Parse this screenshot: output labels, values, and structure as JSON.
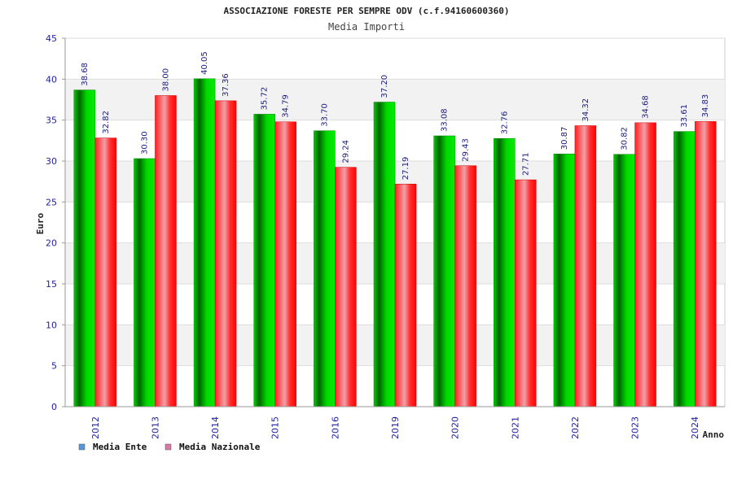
{
  "chart_data": {
    "type": "bar",
    "title": "ASSOCIAZIONE FORESTE PER SEMPRE ODV (c.f.94160600360)",
    "subtitle": "Media Importi",
    "xlabel": "Anno",
    "ylabel": "Euro",
    "ylim": [
      0,
      45
    ],
    "yticks": [
      0,
      5,
      10,
      15,
      20,
      25,
      30,
      35,
      40,
      45
    ],
    "grid": "horizontal",
    "legend_position": "bottom-left",
    "categories": [
      "2012",
      "2013",
      "2014",
      "2015",
      "2016",
      "2019",
      "2020",
      "2021",
      "2022",
      "2023",
      "2024"
    ],
    "series": [
      {
        "name": "Media Ente",
        "color": "#00c000",
        "legend_color": "#5599dd",
        "values": [
          38.68,
          30.3,
          40.05,
          35.72,
          33.7,
          37.2,
          33.08,
          32.76,
          30.87,
          30.82,
          33.61
        ],
        "labels": [
          "38.68",
          "30.30",
          "40.05",
          "35.72",
          "33.70",
          "37.20",
          "33.08",
          "32.76",
          "30.87",
          "30.82",
          "33.61"
        ]
      },
      {
        "name": "Media Nazionale",
        "color": "#ff1a1a",
        "legend_color": "#dd77aa",
        "values": [
          32.82,
          38.0,
          37.36,
          34.79,
          29.24,
          27.19,
          29.43,
          27.71,
          34.32,
          34.68,
          34.83
        ],
        "labels": [
          "32.82",
          "38.00",
          "37.36",
          "34.79",
          "29.24",
          "27.19",
          "29.43",
          "27.71",
          "34.32",
          "34.68",
          "34.83"
        ]
      }
    ]
  }
}
